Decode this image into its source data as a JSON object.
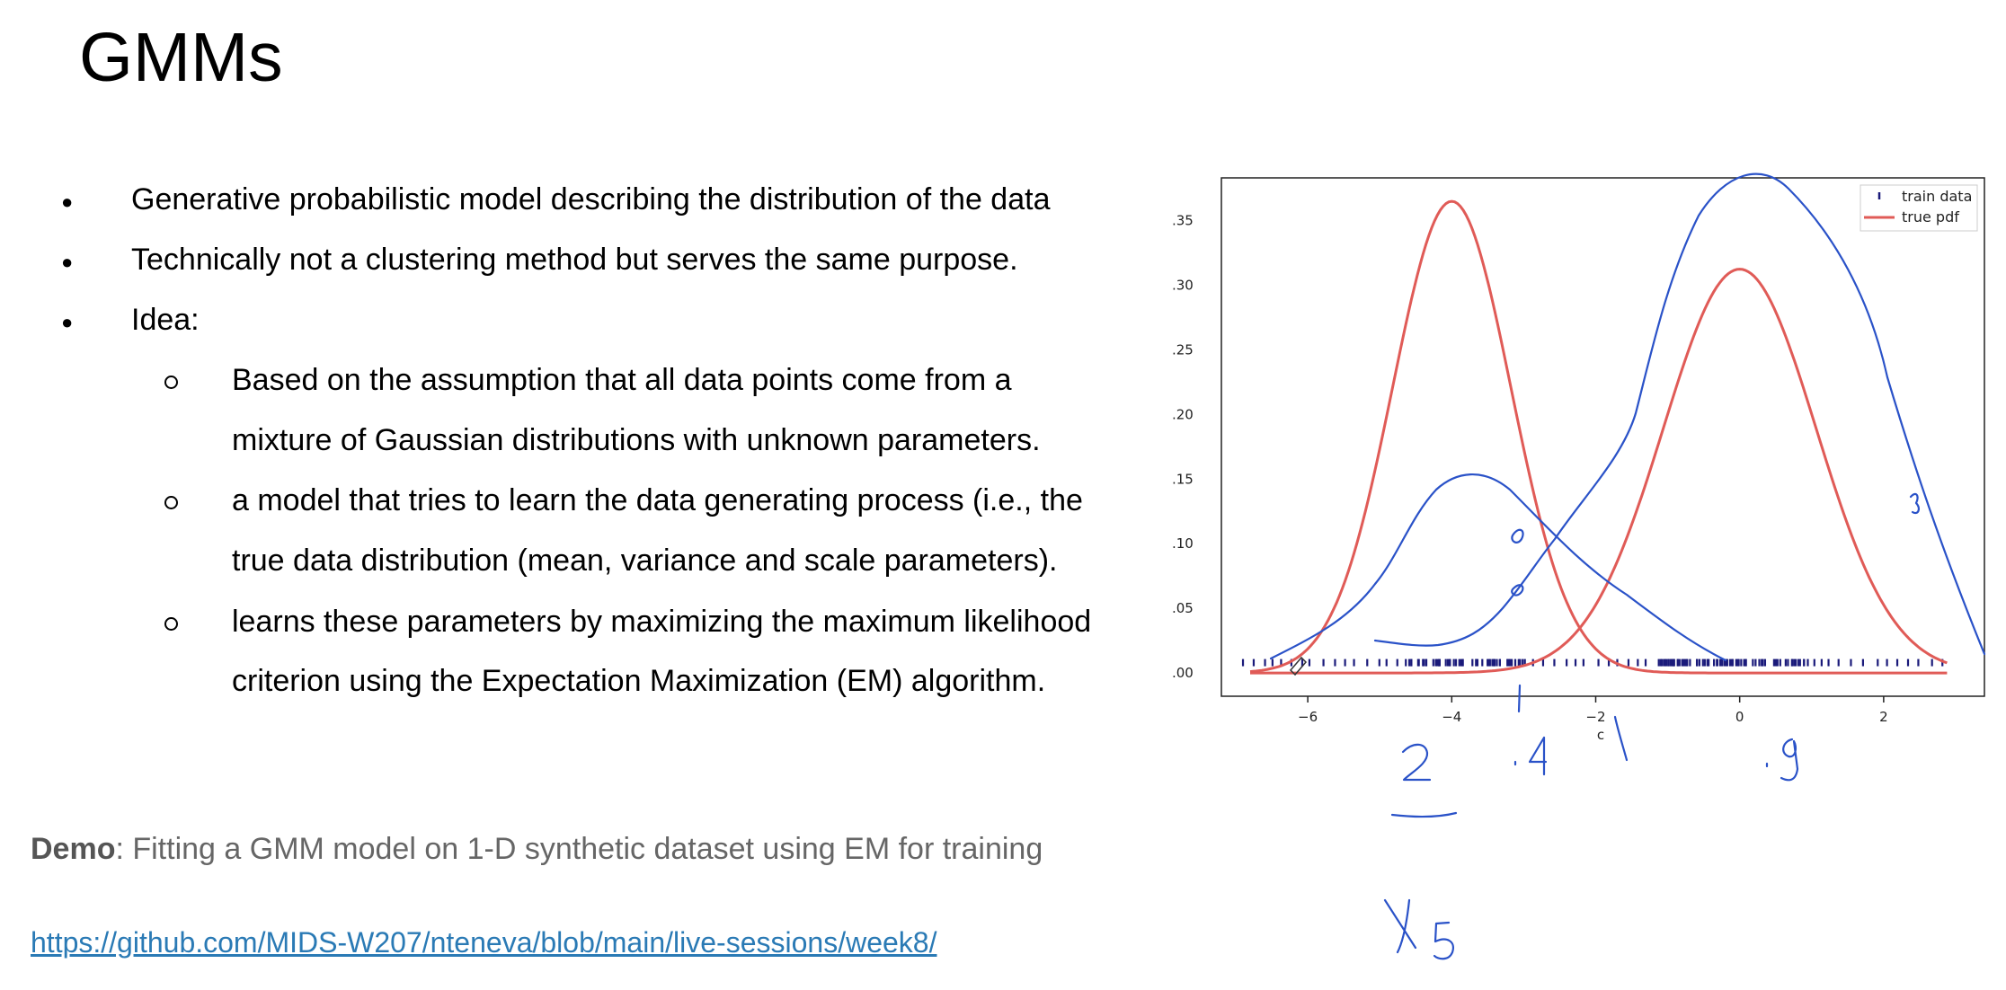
{
  "slide": {
    "title": "GMMs",
    "bullets": [
      "Generative probabilistic model describing the distribution of the data",
      "Technically not a clustering method but serves the same purpose.",
      "Idea:"
    ],
    "sub_bullets": [
      {
        "line1": "Based on the assumption that all data points come from a",
        "line2": "mixture of Gaussian distributions with unknown parameters."
      },
      {
        "line1": "a model that tries to learn the data generating process (i.e., the",
        "line2": "true data distribution (mean, variance and scale parameters)."
      },
      {
        "line1": "learns these parameters by maximizing the maximum likelihood",
        "line2": "criterion using the Expectation Maximization (EM) algorithm."
      }
    ],
    "demo_bold": "Demo",
    "demo_text": ": Fitting a GMM model on 1-D synthetic dataset using EM for training",
    "link": "https://github.com/MIDS-W207/nteneva/blob/main/live-sessions/week8/"
  },
  "chart_data": {
    "type": "line",
    "xlabel": "c",
    "ylabel": "",
    "xlim": [
      -7.2,
      3.4
    ],
    "ylim": [
      -0.018,
      0.383
    ],
    "x_ticks": [
      -6,
      -4,
      -2,
      0,
      2
    ],
    "x_tick_labels": [
      "−6",
      "−4",
      "−2",
      "0",
      "2"
    ],
    "y_ticks": [
      0.0,
      0.05,
      0.1,
      0.15,
      0.2,
      0.25,
      0.3,
      0.35
    ],
    "y_tick_labels": [
      ".00",
      ".05",
      ".10",
      ".15",
      ".20",
      ".25",
      ".30",
      ".35"
    ],
    "legend_position": "top-right",
    "series": [
      {
        "name": "train data",
        "kind": "rug",
        "color": "#1a1a7a"
      },
      {
        "name": "true pdf",
        "kind": "line",
        "color": "#e05b57",
        "components": [
          {
            "mean": -4.0,
            "sd": 0.82,
            "weight": 0.75
          },
          {
            "mean": 0.0,
            "sd": 1.06,
            "weight": 0.83
          }
        ]
      }
    ],
    "annotations": [
      ".2",
      ".4",
      ".9",
      "1/5"
    ]
  }
}
